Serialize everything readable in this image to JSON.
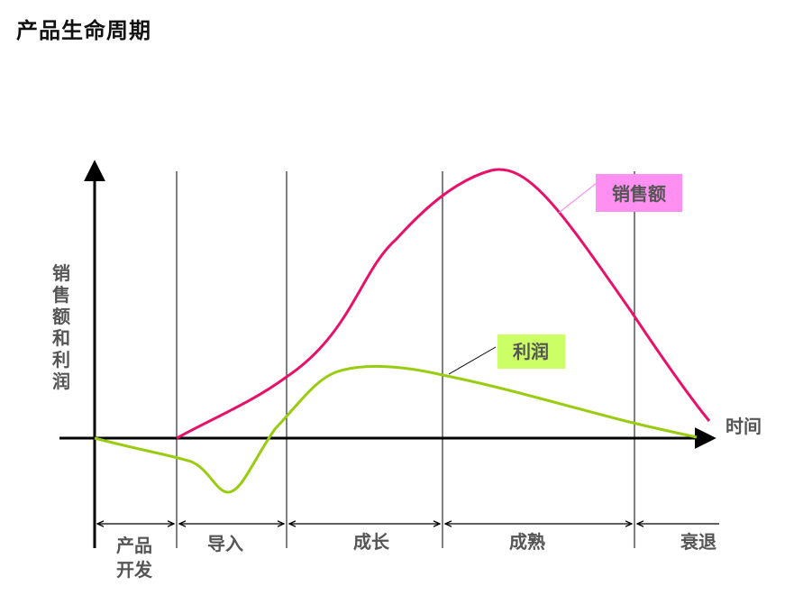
{
  "title": "产品生命周期",
  "y_axis_label": "销售额和利润",
  "x_axis_label": "时间",
  "labels": {
    "sales": "销售额",
    "profit": "利润"
  },
  "stages": [
    {
      "line1": "产品",
      "line2": "开发"
    },
    {
      "line1": "导入",
      "line2": ""
    },
    {
      "line1": "成长",
      "line2": ""
    },
    {
      "line1": "成熟",
      "line2": ""
    },
    {
      "line1": "衰退",
      "line2": ""
    }
  ],
  "colors": {
    "sales": "#E8116A",
    "profit": "#99CC11",
    "sales_label_bg": "#FF8FF0",
    "profit_label_bg": "#CCFF66"
  }
}
